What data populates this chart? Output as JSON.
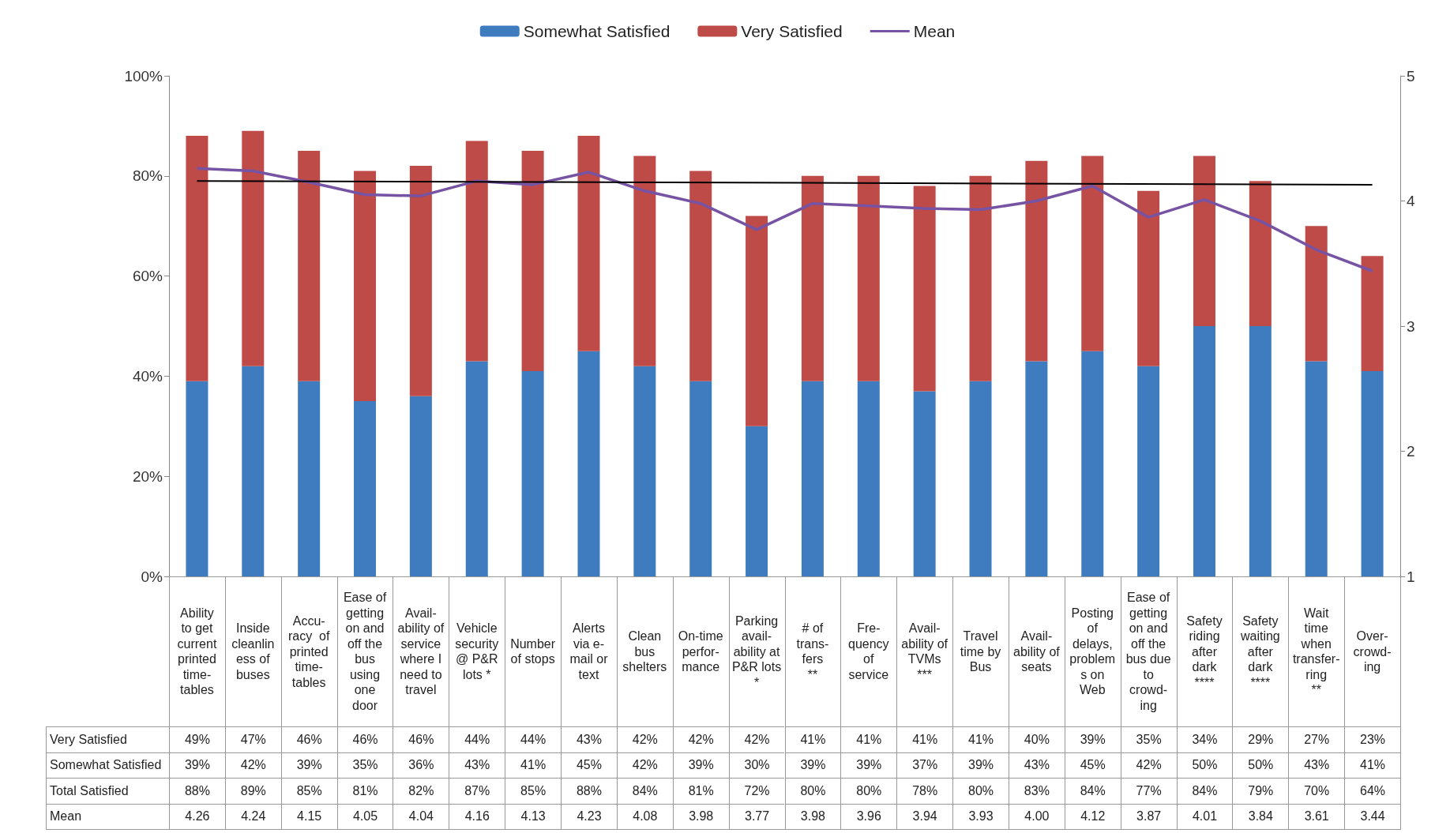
{
  "chart_data": {
    "type": "bar",
    "stacked": true,
    "legend": "top",
    "categories": [
      "Ability\nto get\ncurrent\nprinted\ntime-\ntables",
      "Inside\ncleanlin\ness of\nbuses",
      "Accu-\nracy  of\nprinted\ntime-\ntables",
      "Ease of\ngetting\non and\noff the\nbus\nusing\none\ndoor",
      "Avail-\nability of\nservice\nwhere I\nneed to\ntravel",
      "Vehicle\nsecurity\n@ P&R\nlots *",
      "Number\nof stops",
      "Alerts\nvia e-\nmail or\ntext",
      "Clean\nbus\nshelters",
      "On-time\nperfor-\nmance",
      "Parking\navail-\nability at\nP&R lots\n*",
      "# of\ntrans-\nfers\n**",
      "Fre-\nquency\nof\nservice",
      "Avail-\nability of\nTVMs\n***",
      "Travel\ntime by\nBus",
      "Avail-\nability of\nseats",
      "Posting\nof\ndelays,\nproblem\ns on\nWeb",
      "Ease of\ngetting\non and\noff the\nbus due\nto\ncrowd-\ning",
      "Safety\nriding\nafter\ndark\n****",
      "Safety\nwaiting\nafter\ndark\n****",
      "Wait\ntime\nwhen\ntransfer-\nring\n**",
      "Over-\ncrowd-\ning"
    ],
    "series": [
      {
        "name": "Somewhat Satisfied",
        "color": "#3f7cbf",
        "values": [
          39,
          42,
          39,
          35,
          36,
          43,
          41,
          45,
          42,
          39,
          30,
          39,
          39,
          37,
          39,
          43,
          45,
          42,
          50,
          50,
          43,
          41
        ],
        "value_labels": [
          "39%",
          "42%",
          "39%",
          "35%",
          "36%",
          "43%",
          "41%",
          "45%",
          "42%",
          "39%",
          "30%",
          "39%",
          "39%",
          "37%",
          "39%",
          "43%",
          "45%",
          "42%",
          "50%",
          "50%",
          "43%",
          "41%"
        ]
      },
      {
        "name": "Very Satisfied",
        "color": "#be4b48",
        "values": [
          49,
          47,
          46,
          46,
          46,
          44,
          44,
          43,
          42,
          42,
          42,
          41,
          41,
          41,
          41,
          40,
          39,
          35,
          34,
          29,
          27,
          23
        ],
        "value_labels": [
          "49%",
          "47%",
          "46%",
          "46%",
          "46%",
          "44%",
          "44%",
          "43%",
          "42%",
          "42%",
          "42%",
          "41%",
          "41%",
          "41%",
          "41%",
          "40%",
          "39%",
          "35%",
          "34%",
          "29%",
          "27%",
          "23%"
        ]
      },
      {
        "name": "Mean",
        "type": "line",
        "axis": "y2",
        "color": "#7753a3",
        "values": [
          4.26,
          4.24,
          4.15,
          4.05,
          4.04,
          4.16,
          4.13,
          4.23,
          4.08,
          3.98,
          3.77,
          3.98,
          3.96,
          3.94,
          3.93,
          4.0,
          4.12,
          3.87,
          4.01,
          3.84,
          3.61,
          3.44
        ],
        "value_labels": [
          "4.26",
          "4.24",
          "4.15",
          "4.05",
          "4.04",
          "4.16",
          "4.13",
          "4.23",
          "4.08",
          "3.98",
          "3.77",
          "3.98",
          "3.96",
          "3.94",
          "3.93",
          "4.00",
          "4.12",
          "3.87",
          "4.01",
          "3.84",
          "3.61",
          "3.44"
        ]
      },
      {
        "type": "line",
        "axis": "y2",
        "color": "#000000",
        "x": [
          "Ability\nto get\ncurrent\nprinted\ntime-\ntables",
          "Over-\ncrowd-\ning"
        ],
        "values": [
          4.16,
          4.13
        ]
      }
    ],
    "annotations": [
      "Total Satisfied",
      "88%",
      "89%",
      "85%",
      "81%",
      "82%",
      "87%",
      "85%",
      "88%",
      "84%",
      "81%",
      "72%",
      "80%",
      "80%",
      "78%",
      "80%",
      "83%",
      "84%",
      "77%",
      "84%",
      "79%",
      "70%",
      "64%"
    ],
    "ylim": [
      0,
      100
    ],
    "yticks": [
      {
        "value": 0,
        "label": "0%"
      },
      {
        "value": 20,
        "label": "20%"
      },
      {
        "value": 40,
        "label": "40%"
      },
      {
        "value": 60,
        "label": "60%"
      },
      {
        "value": 80,
        "label": "80%"
      },
      {
        "value": 100,
        "label": "100%"
      }
    ],
    "y2lim": [
      1,
      5
    ],
    "y2ticks": [
      1,
      2,
      3,
      4,
      5
    ]
  }
}
